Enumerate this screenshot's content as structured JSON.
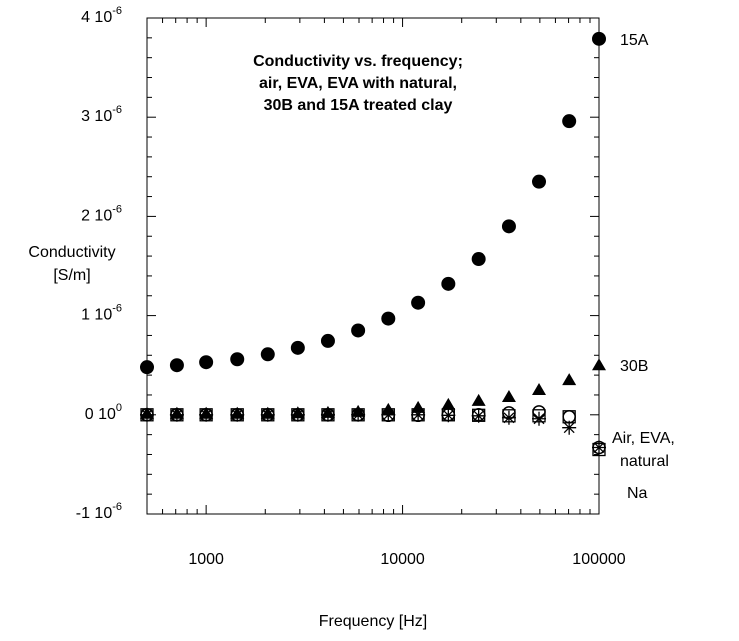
{
  "chart_data": {
    "type": "scatter",
    "title": [
      "Conductivity vs. frequency;",
      "air, EVA, EVA with natural,",
      "30B and 15A treated clay"
    ],
    "x_label": "Frequency [Hz]",
    "y_label": [
      "Conductivity",
      "[S/m]"
    ],
    "log_x": true,
    "xlim": [
      500,
      100000
    ],
    "ylim": [
      -1e-06,
      4e-06
    ],
    "xticks": [
      1000,
      10000,
      100000
    ],
    "xminorticks": [
      600,
      700,
      800,
      900,
      2000,
      3000,
      4000,
      5000,
      6000,
      7000,
      8000,
      9000,
      20000,
      30000,
      40000,
      50000,
      60000,
      70000,
      80000,
      90000
    ],
    "yticks": [
      {
        "value": -1e-06,
        "label": "-1 10",
        "exponent": "-6"
      },
      {
        "value": 0,
        "label": "0 10",
        "exponent": "0"
      },
      {
        "value": 1e-06,
        "label": "1 10",
        "exponent": "-6"
      },
      {
        "value": 2e-06,
        "label": "2 10",
        "exponent": "-6"
      },
      {
        "value": 3e-06,
        "label": "3 10",
        "exponent": "-6"
      },
      {
        "value": 4e-06,
        "label": "4 10",
        "exponent": "-6"
      }
    ],
    "yminorticks": [
      -8e-07,
      -6e-07,
      -4e-07,
      -2e-07,
      2e-07,
      4e-07,
      6e-07,
      8e-07,
      1.2e-06,
      1.4e-06,
      1.6e-06,
      1.8e-06,
      2.2e-06,
      2.4e-06,
      2.6e-06,
      2.8e-06,
      3.2e-06,
      3.4e-06,
      3.6e-06,
      3.8e-06
    ],
    "x": [
      500,
      710,
      1000,
      1440,
      2060,
      2930,
      4170,
      5940,
      8460,
      12000,
      17100,
      24400,
      34800,
      49500,
      70500,
      100000
    ],
    "series": [
      {
        "name": "15A",
        "marker": "circle-filled",
        "color": "#000000",
        "values": [
          4.8e-07,
          5e-07,
          5.3e-07,
          5.6e-07,
          6.1e-07,
          6.75e-07,
          7.45e-07,
          8.5e-07,
          9.7e-07,
          1.13e-06,
          1.32e-06,
          1.57e-06,
          1.9e-06,
          2.35e-06,
          2.96e-06,
          3.79e-06
        ]
      },
      {
        "name": "30B",
        "marker": "triangle-filled",
        "color": "#000000",
        "values": [
          1e-08,
          1e-08,
          1e-08,
          1e-08,
          1e-08,
          1.5e-08,
          2e-08,
          3e-08,
          5e-08,
          7e-08,
          1e-07,
          1.4e-07,
          1.8e-07,
          2.5e-07,
          3.5e-07,
          5e-07
        ]
      },
      {
        "marker": "square-open",
        "color": "#000000",
        "values": [
          0,
          0,
          0,
          0,
          0,
          0,
          0,
          0,
          0,
          0,
          0,
          -5e-09,
          -1e-08,
          -1e-08,
          -2e-08,
          -3.5e-07
        ]
      },
      {
        "marker": "circle-open",
        "color": "#000000",
        "values": [
          0,
          0,
          0,
          0,
          0,
          0,
          0,
          0,
          -5e-09,
          -5e-09,
          0,
          0,
          2e-08,
          3e-08,
          -2e-08,
          -3.3e-07
        ]
      },
      {
        "marker": "asterisk",
        "color": "#000000",
        "values": [
          0,
          0,
          0,
          0,
          0,
          0,
          0,
          0,
          0,
          0,
          -5e-09,
          -1e-08,
          -3e-08,
          -4e-08,
          -1.3e-07,
          -3.3e-07
        ]
      }
    ],
    "annotations": [
      "15A",
      "30B",
      "Air, EVA,",
      "natural",
      "Na"
    ]
  }
}
